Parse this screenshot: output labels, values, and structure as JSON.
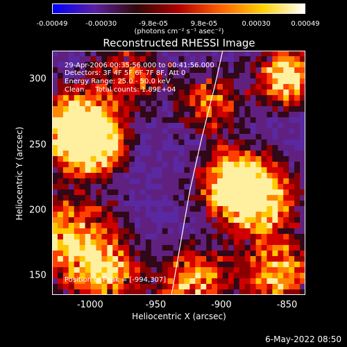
{
  "colorbar": {
    "ticks": [
      "-0.00049",
      "-0.00030",
      "-9.8e-05",
      "9.8e-05",
      "0.00030",
      "0.00049"
    ],
    "tick_values": [
      -0.00049,
      -0.0003,
      -9.8e-05,
      9.8e-05,
      0.0003,
      0.00049
    ],
    "unit_label": "(photons cm⁻² s⁻¹ asec⁻²)",
    "colors": [
      "#0000ff",
      "#5a20a0",
      "#300808",
      "#b00000",
      "#ff6000",
      "#ffd000",
      "#ffffff"
    ]
  },
  "overlay": {
    "time_range": "29-Apr-2006 00:35:56.000 to 00:41:56.000",
    "detectors": "Detectors: 3F 4F 5F 6F 7F 8F, Att 0",
    "energy": "Energy Range: 25.0 - 50.0 keV",
    "clean": "Clean     Total counts: 1.89E+04",
    "peak": "Position of Peak = [-994,307]"
  },
  "timestamp": "6-May-2022 08:50",
  "chart_data": {
    "type": "heatmap",
    "title": "Reconstructed RHESSI Image",
    "xlabel": "Heliocentric X (arcsec)",
    "ylabel": "Heliocentric Y (arcsec)",
    "xlim": [
      -1029,
      -836
    ],
    "ylim": [
      135,
      322
    ],
    "xticks": [
      -1000,
      -950,
      -900,
      -850
    ],
    "xtick_labels": [
      "-1000",
      "-950",
      "-900",
      "-850"
    ],
    "yticks": [
      150,
      200,
      250,
      300
    ],
    "ytick_labels": [
      "150",
      "200",
      "250",
      "300"
    ],
    "peak_position": [
      -994,
      307
    ],
    "limb": [
      [
        -938,
        135
      ],
      [
        -931,
        175
      ],
      [
        -924,
        215
      ],
      [
        -915,
        255
      ],
      [
        -905,
        295
      ],
      [
        -899,
        322
      ]
    ],
    "grid": false
  }
}
